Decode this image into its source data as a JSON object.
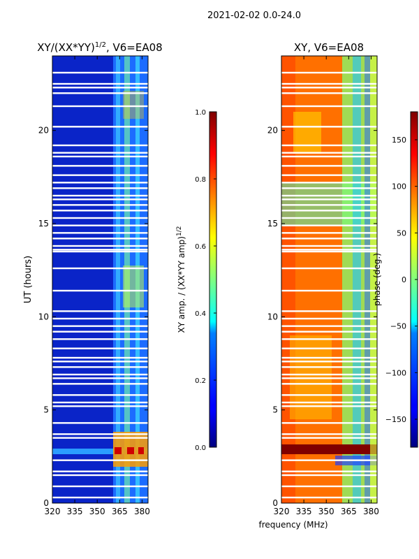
{
  "figure": {
    "suptitle": "2021-02-02 0.0-24.0",
    "shared_xlabel": "frequency (MHz)"
  },
  "chart_data": [
    {
      "type": "heatmap",
      "title_main": "XY/(XX*YY)",
      "title_exp": "1/2",
      "title_tail": ", V6=EA08",
      "xlabel": "",
      "ylabel": "UT (hours)",
      "xlim": [
        320,
        384
      ],
      "ylim": [
        0,
        24
      ],
      "xticks": [
        320,
        335,
        350,
        365,
        380
      ],
      "yticks": [
        0,
        5,
        10,
        15,
        20
      ],
      "colorbar": {
        "label_main": "XY amp. / (XX*YY amp)",
        "label_exp": "1/2",
        "range": [
          0.0,
          1.0
        ],
        "ticks": [
          "0.0",
          "0.2",
          "0.4",
          "0.6",
          "0.8",
          "1.0"
        ],
        "colormap": "jet"
      },
      "description_values": {
        "background_level": 0.05,
        "band_360_384_level": 0.35,
        "peak_band_hours": [
          2.0,
          3.8
        ],
        "peak_level": 0.9
      }
    },
    {
      "type": "heatmap",
      "title_main": "XY, V6=EA08",
      "xlabel": "frequency (MHz)",
      "ylabel": "",
      "xlim": [
        320,
        384
      ],
      "ylim": [
        0,
        24
      ],
      "xticks": [
        320,
        335,
        350,
        365,
        380
      ],
      "yticks": [
        0,
        5,
        10,
        15,
        20
      ],
      "colorbar": {
        "label": "phase (deg.)",
        "range": [
          -180,
          180
        ],
        "ticks": [
          "−150",
          "−100",
          "−50",
          "0",
          "50",
          "100",
          "150"
        ],
        "colormap": "jet"
      },
      "description_values": {
        "dominant_phase_deg": 120,
        "band_360_384_phase_deg": -20,
        "dark_band_hours": [
          2.6,
          3.2
        ],
        "dark_band_phase_deg": 170
      }
    }
  ],
  "gap_rows_hours": [
    0.3,
    0.9,
    1.5,
    1.7,
    2.3,
    3.5,
    3.7,
    4.3,
    5.2,
    5.4,
    5.8,
    6.4,
    6.7,
    6.9,
    7.3,
    7.6,
    7.8,
    8.3,
    8.8,
    9.2,
    9.5,
    9.9,
    10.3,
    11.4,
    12.6,
    13.5,
    13.6,
    13.8,
    14.2,
    14.5,
    14.9,
    15.3,
    15.7,
    16.0,
    16.3,
    16.5,
    16.9,
    17.2,
    17.6,
    18.1,
    18.6,
    18.8,
    19.2,
    20.2,
    21.3,
    22.0,
    22.3,
    22.5,
    23.1
  ]
}
